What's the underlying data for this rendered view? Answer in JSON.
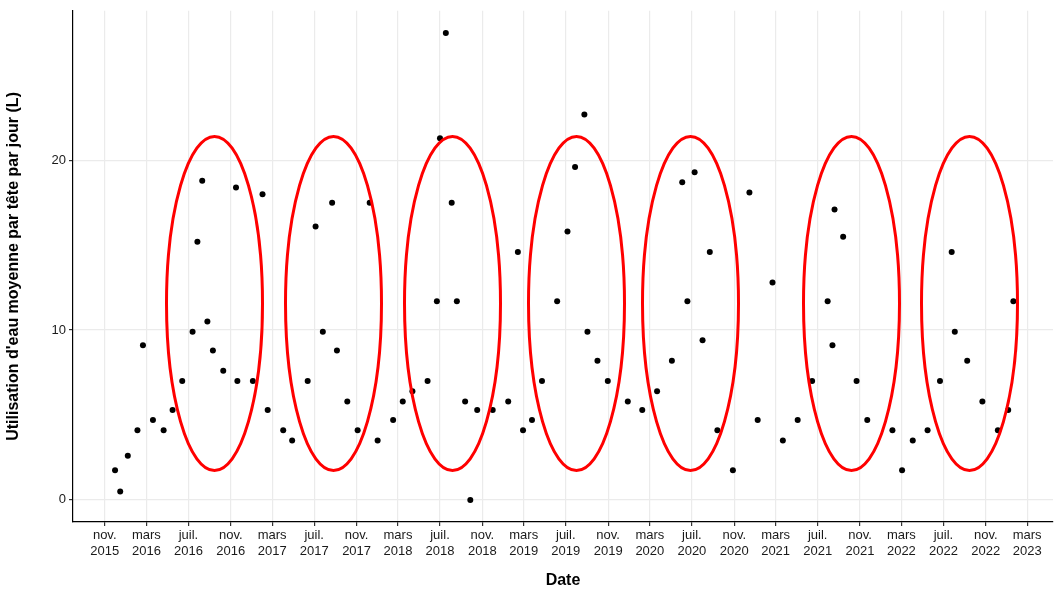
{
  "chart_data": {
    "type": "scatter",
    "xlabel": "Date",
    "ylabel": "Utilisation d'eau moyenne par tête par jour (L)",
    "color": "#000000",
    "marker": "circle",
    "grid": true,
    "legend": false,
    "x": [
      "2015-12-01",
      "2015-12-16",
      "2016-01-07",
      "2016-02-04",
      "2016-02-20",
      "2016-03-20",
      "2016-04-20",
      "2016-05-16",
      "2016-06-13",
      "2016-07-13",
      "2016-07-27",
      "2016-08-10",
      "2016-08-25",
      "2016-09-10",
      "2016-10-10",
      "2016-11-16",
      "2016-11-20",
      "2017-01-04",
      "2017-02-01",
      "2017-02-16",
      "2017-04-02",
      "2017-04-28",
      "2017-06-12",
      "2017-07-05",
      "2017-07-26",
      "2017-08-22",
      "2017-09-05",
      "2017-10-05",
      "2017-11-04",
      "2017-12-09",
      "2018-01-01",
      "2018-02-15",
      "2018-03-15",
      "2018-04-12",
      "2018-05-26",
      "2018-06-22",
      "2018-07-01",
      "2018-07-18",
      "2018-08-04",
      "2018-08-19",
      "2018-09-12",
      "2018-09-27",
      "2018-10-17",
      "2018-12-01",
      "2019-01-15",
      "2019-02-12",
      "2019-02-27",
      "2019-03-25",
      "2019-04-23",
      "2019-06-06",
      "2019-07-06",
      "2019-07-28",
      "2019-08-24",
      "2019-09-02",
      "2019-10-01",
      "2019-10-31",
      "2019-12-28",
      "2020-02-08",
      "2020-03-22",
      "2020-05-04",
      "2020-06-03",
      "2020-06-18",
      "2020-07-09",
      "2020-08-01",
      "2020-08-22",
      "2020-09-13",
      "2020-10-28",
      "2020-12-15",
      "2021-01-08",
      "2021-02-20",
      "2021-03-22",
      "2021-05-04",
      "2021-06-15",
      "2021-07-30",
      "2021-08-13",
      "2021-08-19",
      "2021-09-13",
      "2021-10-22",
      "2021-11-22",
      "2022-02-03",
      "2022-03-03",
      "2022-04-03",
      "2022-05-16",
      "2022-06-21",
      "2022-07-25",
      "2022-08-03",
      "2022-09-08",
      "2022-10-22",
      "2022-12-06",
      "2023-01-05",
      "2023-01-20"
    ],
    "values": [
      1.75,
      0.5,
      2.6,
      4.1,
      9.1,
      4.7,
      4.1,
      5.3,
      7.0,
      9.9,
      15.2,
      18.8,
      10.5,
      8.8,
      7.6,
      18.4,
      7.0,
      7.0,
      18.0,
      5.3,
      4.1,
      3.5,
      7.0,
      16.1,
      9.9,
      17.5,
      8.8,
      5.8,
      4.1,
      17.5,
      3.5,
      4.7,
      5.8,
      6.4,
      7.0,
      11.7,
      21.3,
      27.5,
      17.5,
      11.7,
      5.8,
      0.0,
      5.3,
      5.3,
      5.8,
      14.6,
      4.1,
      4.7,
      7.0,
      11.7,
      15.8,
      19.6,
      22.7,
      9.9,
      8.2,
      7.0,
      5.8,
      5.3,
      6.4,
      8.2,
      18.7,
      11.7,
      19.3,
      9.4,
      14.6,
      4.1,
      1.75,
      18.1,
      4.7,
      12.8,
      3.5,
      4.7,
      7.0,
      11.7,
      9.1,
      17.1,
      15.5,
      7.0,
      4.7,
      4.1,
      1.75,
      3.5,
      4.1,
      7.0,
      14.6,
      9.9,
      8.2,
      5.8,
      4.1,
      5.3,
      11.7
    ],
    "xlim": [
      "2015-08-01",
      "2023-05-15"
    ],
    "ylim": [
      -1.3,
      28.8
    ],
    "yticks": [
      0,
      10,
      20
    ],
    "xticks": [
      {
        "value": "2015-11",
        "label": "nov. 2015"
      },
      {
        "value": "2016-03",
        "label": "mars 2016"
      },
      {
        "value": "2016-07",
        "label": "juil. 2016"
      },
      {
        "value": "2016-11",
        "label": "nov. 2016"
      },
      {
        "value": "2017-03",
        "label": "mars 2017"
      },
      {
        "value": "2017-07",
        "label": "juil. 2017"
      },
      {
        "value": "2017-11",
        "label": "nov. 2017"
      },
      {
        "value": "2018-03",
        "label": "mars 2018"
      },
      {
        "value": "2018-07",
        "label": "juil. 2018"
      },
      {
        "value": "2018-11",
        "label": "nov. 2018"
      },
      {
        "value": "2019-03",
        "label": "mars 2019"
      },
      {
        "value": "2019-07",
        "label": "juil. 2019"
      },
      {
        "value": "2019-11",
        "label": "nov. 2019"
      },
      {
        "value": "2020-03",
        "label": "mars 2020"
      },
      {
        "value": "2020-07",
        "label": "juil. 2020"
      },
      {
        "value": "2020-11",
        "label": "nov. 2020"
      },
      {
        "value": "2021-03",
        "label": "mars 2021"
      },
      {
        "value": "2021-07",
        "label": "juil. 2021"
      },
      {
        "value": "2021-11",
        "label": "nov. 2021"
      },
      {
        "value": "2022-03",
        "label": "mars 2022"
      },
      {
        "value": "2022-07",
        "label": "juil. 2022"
      },
      {
        "value": "2022-11",
        "label": "nov. 2022"
      },
      {
        "value": "2023-03",
        "label": "mars 2023"
      }
    ]
  }
}
